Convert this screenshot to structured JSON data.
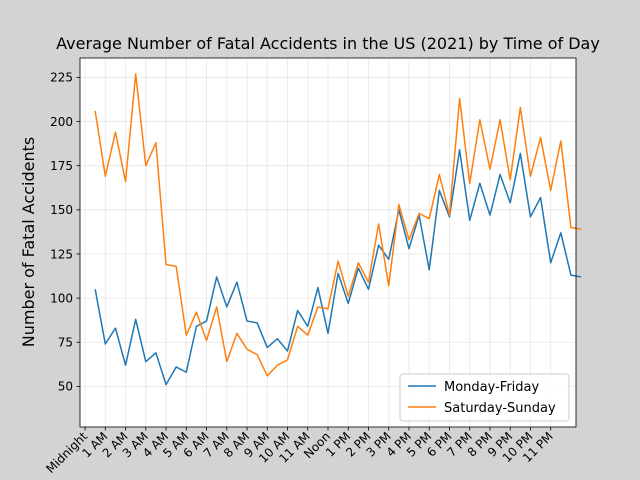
{
  "chart_data": {
    "type": "line",
    "title": "Average Number of Fatal Accidents in the US (2021) by Time of Day",
    "xlabel": "",
    "ylabel": "Number of Fatal Accidents",
    "ylim": [
      27,
      236
    ],
    "xlim": [
      -0.5,
      48.5
    ],
    "yticks": [
      50,
      75,
      100,
      125,
      150,
      175,
      200,
      225
    ],
    "xtick_labels": [
      "Midnight",
      "1 AM",
      "2 AM",
      "3 AM",
      "4 AM",
      "5 AM",
      "6 AM",
      "7 AM",
      "8 AM",
      "9 AM",
      "10 AM",
      "11 AM",
      "Noon",
      "1 PM",
      "2 PM",
      "3 PM",
      "4 PM",
      "5 PM",
      "6 PM",
      "7 PM",
      "8 PM",
      "9 PM",
      "10 PM",
      "11 PM"
    ],
    "xtick_positions": [
      0,
      2,
      4,
      6,
      8,
      10,
      12,
      14,
      16,
      18,
      20,
      22,
      24,
      26,
      28,
      30,
      32,
      34,
      36,
      38,
      40,
      42,
      44,
      46
    ],
    "grid": true,
    "legend_position": "lower-right",
    "x": [
      1,
      2,
      3,
      4,
      5,
      6,
      7,
      8,
      9,
      10,
      11,
      12,
      13,
      14,
      15,
      16,
      17,
      18,
      19,
      20,
      21,
      22,
      23,
      24,
      25,
      26,
      27,
      28,
      29,
      30,
      31,
      32,
      33,
      34,
      35,
      36,
      37,
      38,
      39,
      40,
      41,
      42,
      43,
      44,
      45,
      46,
      47,
      48,
      49
    ],
    "series": [
      {
        "name": "Monday-Friday",
        "color": "#1f77b4",
        "values": [
          105,
          74,
          83,
          62,
          88,
          64,
          69,
          51,
          61,
          58,
          84,
          87,
          112,
          95,
          109,
          87,
          86,
          72,
          77,
          70,
          93,
          84,
          106,
          80,
          114,
          97,
          117,
          105,
          130,
          122,
          150,
          128,
          147,
          116,
          161,
          146,
          184,
          144,
          165,
          147,
          170,
          154,
          182,
          146,
          157,
          120,
          137,
          113,
          112
        ]
      },
      {
        "name": "Saturday-Sunday",
        "color": "#ff7f0e",
        "values": [
          206,
          169,
          194,
          166,
          227,
          175,
          188,
          119,
          118,
          79,
          92,
          76,
          95,
          64,
          80,
          71,
          68,
          56,
          62,
          65,
          84,
          79,
          95,
          94,
          121,
          101,
          120,
          109,
          142,
          107,
          153,
          133,
          148,
          145,
          170,
          147,
          213,
          165,
          201,
          173,
          201,
          167,
          208,
          169,
          191,
          161,
          189,
          140,
          139
        ]
      }
    ]
  }
}
